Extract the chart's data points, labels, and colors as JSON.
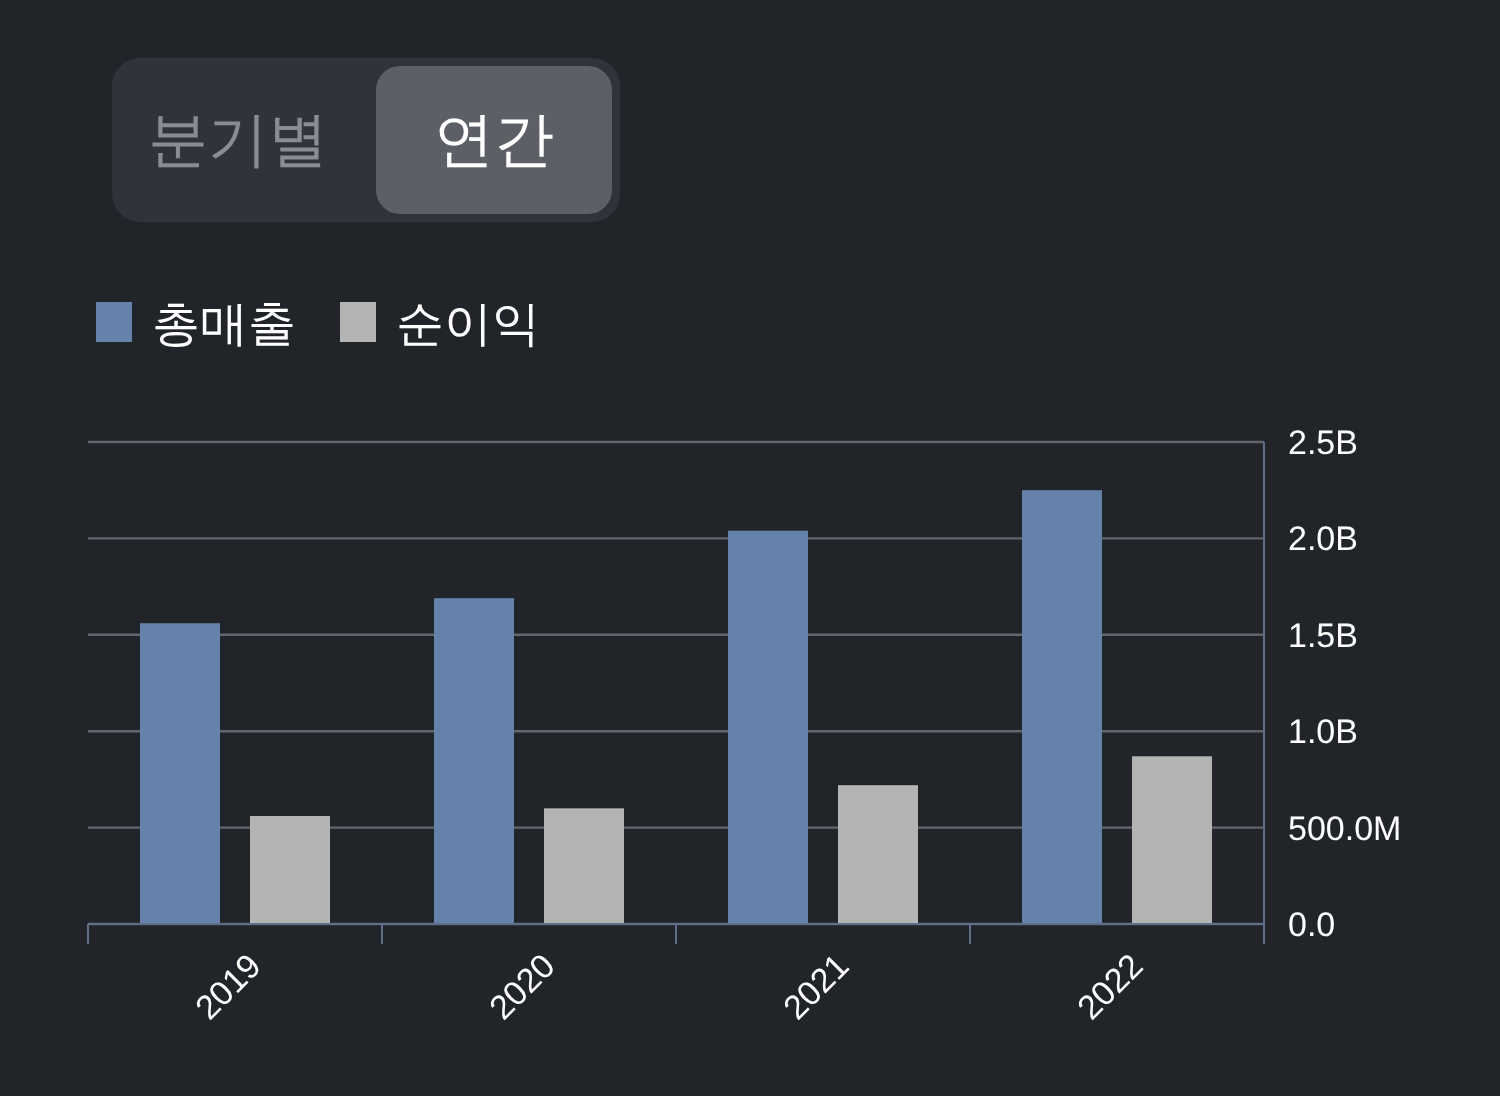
{
  "chart_data": {
    "type": "bar",
    "annotations": [
      "분기별",
      "연간"
    ],
    "categories": [
      "2019",
      "2020",
      "2021",
      "2022"
    ],
    "series": [
      {
        "name": "총매출",
        "color": "#6482aa",
        "values": [
          1560000000,
          1690000000,
          2040000000,
          2250000000
        ]
      },
      {
        "name": "순이익",
        "color": "#b4b4b4",
        "values": [
          560000000,
          600000000,
          720000000,
          870000000
        ]
      }
    ],
    "ylim": [
      0,
      2500000000
    ],
    "yticks": [
      {
        "value": 0,
        "label": "0.0"
      },
      {
        "value": 500000000,
        "label": "500.0M"
      },
      {
        "value": 1000000000,
        "label": "1.0B"
      },
      {
        "value": 1500000000,
        "label": "1.5B"
      },
      {
        "value": 2000000000,
        "label": "2.0B"
      },
      {
        "value": 2500000000,
        "label": "2.5B"
      }
    ],
    "grid": "y",
    "legend": "top left"
  }
}
